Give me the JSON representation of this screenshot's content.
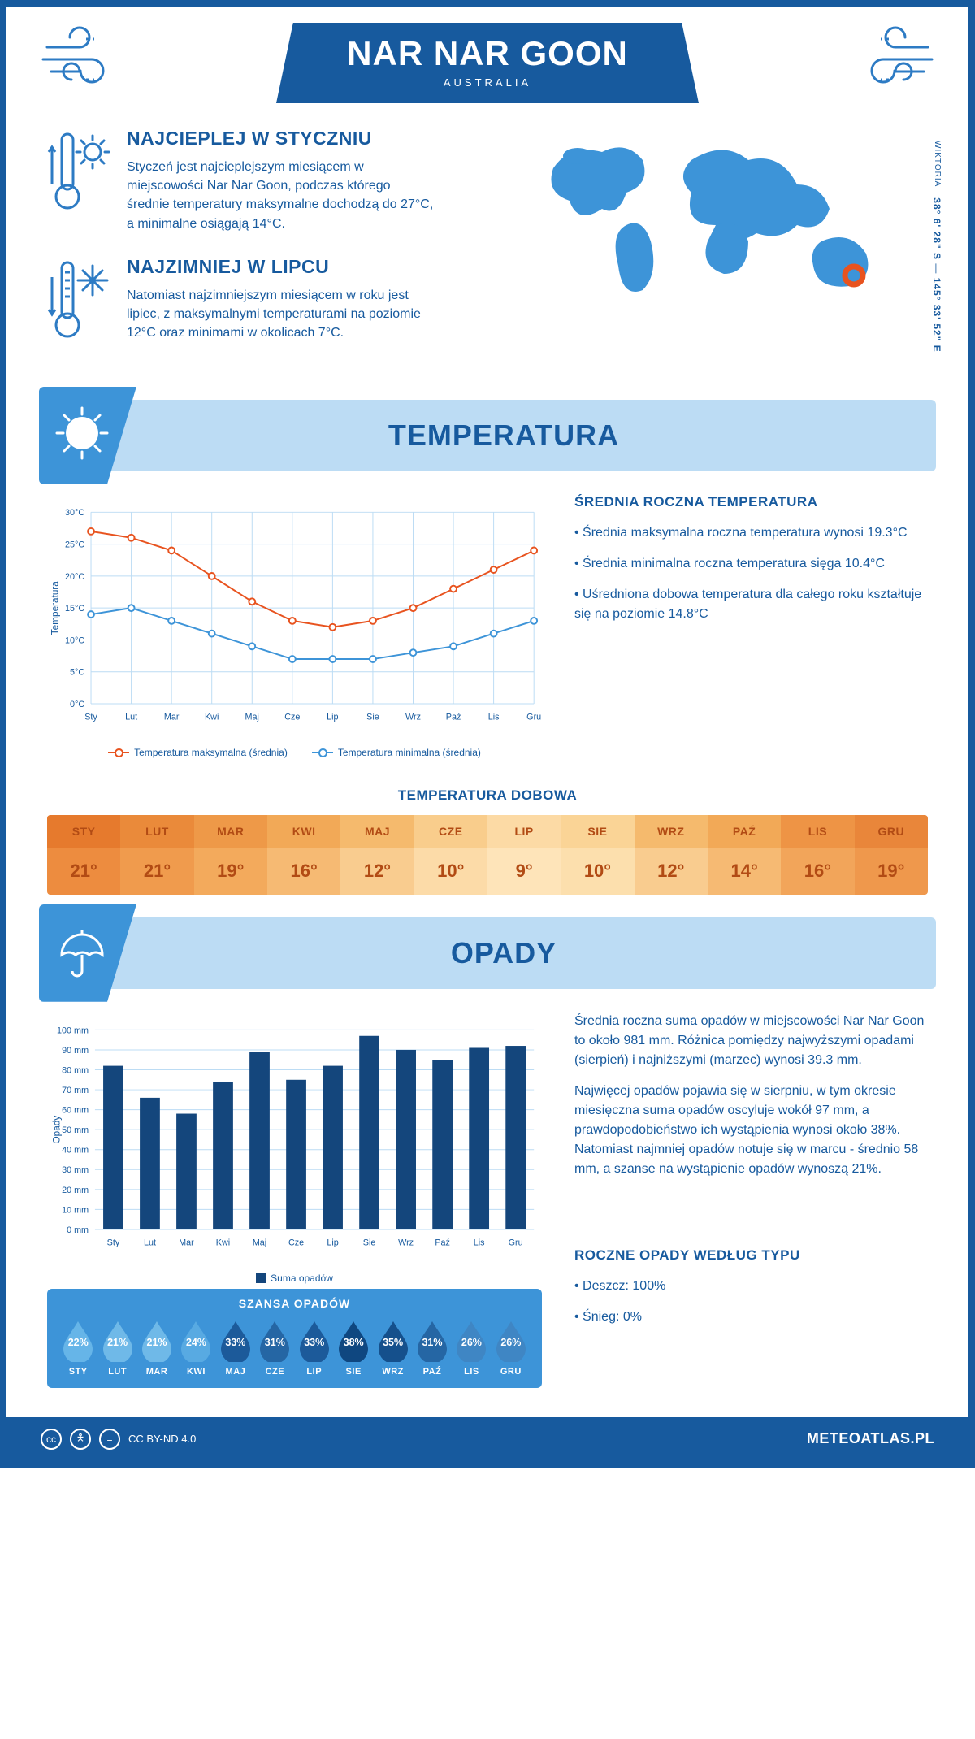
{
  "header": {
    "title": "NAR NAR GOON",
    "subtitle": "AUSTRALIA"
  },
  "intro": {
    "hot": {
      "heading": "NAJCIEPLEJ W STYCZNIU",
      "text": "Styczeń jest najcieplejszym miesiącem w miejscowości Nar Nar Goon, podczas którego średnie temperatury maksymalne dochodzą do 27°C, a minimalne osiągają 14°C."
    },
    "cold": {
      "heading": "NAJZIMNIEJ W LIPCU",
      "text": "Natomiast najzimniejszym miesiącem w roku jest lipiec, z maksymalnymi temperaturami na poziomie 12°C oraz minimami w okolicach 7°C."
    },
    "coords_lat": "38° 6' 28\" S",
    "coords_div": " — ",
    "coords_lon": "145° 33' 52\" E",
    "region": "WIKTORIA"
  },
  "temperature": {
    "section_title": "TEMPERATURA",
    "chart": {
      "type": "line",
      "months": [
        "Sty",
        "Lut",
        "Mar",
        "Kwi",
        "Maj",
        "Cze",
        "Lip",
        "Sie",
        "Wrz",
        "Paź",
        "Lis",
        "Gru"
      ],
      "max_series": [
        27,
        26,
        24,
        20,
        16,
        13,
        12,
        13,
        15,
        18,
        21,
        24
      ],
      "min_series": [
        14,
        15,
        13,
        11,
        9,
        7,
        7,
        7,
        8,
        9,
        11,
        13
      ],
      "max_color": "#e8531f",
      "min_color": "#3d94d8",
      "y_min": 0,
      "y_max": 30,
      "y_step": 5,
      "grid_color": "#bcdcf4",
      "marker_radius": 4,
      "line_width": 2,
      "y_label": "Temperatura",
      "legend_max": "Temperatura maksymalna (średnia)",
      "legend_min": "Temperatura minimalna (średnia)"
    },
    "side": {
      "heading": "ŚREDNIA ROCZNA TEMPERATURA",
      "b1": "• Średnia maksymalna roczna temperatura wynosi 19.3°C",
      "b2": "• Średnia minimalna roczna temperatura sięga 10.4°C",
      "b3": "• Uśredniona dobowa temperatura dla całego roku kształtuje się na poziomie 14.8°C"
    },
    "daily": {
      "title": "TEMPERATURA DOBOWA",
      "months": [
        "STY",
        "LUT",
        "MAR",
        "KWI",
        "MAJ",
        "CZE",
        "LIP",
        "SIE",
        "WRZ",
        "PAŹ",
        "LIS",
        "GRU"
      ],
      "values": [
        "21°",
        "21°",
        "19°",
        "16°",
        "12°",
        "10°",
        "9°",
        "10°",
        "12°",
        "14°",
        "16°",
        "19°"
      ],
      "hd_colors": [
        "#e67a2d",
        "#ea8a3a",
        "#ee9948",
        "#f2a957",
        "#f5ba6d",
        "#f9cd8c",
        "#fcdaa5",
        "#fad496",
        "#f5ba6d",
        "#f2a957",
        "#ee9445",
        "#e9863a"
      ],
      "val_colors": [
        "#ed8c3f",
        "#f09b4d",
        "#f3aa5c",
        "#f6ba73",
        "#f9cc8f",
        "#fcdba8",
        "#fee4b9",
        "#fcdfad",
        "#f9cc8f",
        "#f6ba73",
        "#f2a55a",
        "#ef984c"
      ],
      "text_color": "#b24b14"
    }
  },
  "rain": {
    "section_title": "OPADY",
    "chart": {
      "type": "bar",
      "months": [
        "Sty",
        "Lut",
        "Mar",
        "Kwi",
        "Maj",
        "Cze",
        "Lip",
        "Sie",
        "Wrz",
        "Paź",
        "Lis",
        "Gru"
      ],
      "values": [
        82,
        66,
        58,
        74,
        89,
        75,
        82,
        97,
        90,
        85,
        91,
        92
      ],
      "y_min": 0,
      "y_max": 100,
      "y_step": 10,
      "bar_color": "#14467c",
      "grid_color": "#bcdcf4",
      "y_label": "Opady",
      "legend": "Suma opadów",
      "bar_width": 0.55
    },
    "side": {
      "p1": "Średnia roczna suma opadów w miejscowości Nar Nar Goon to około 981 mm. Różnica pomiędzy najwyższymi opadami (sierpień) i najniższymi (marzec) wynosi 39.3 mm.",
      "p2": "Najwięcej opadów pojawia się w sierpniu, w tym okresie miesięczna suma opadów oscyluje wokół 97 mm, a prawdopodobieństwo ich wystąpienia wynosi około 38%. Natomiast najmniej opadów notuje się w marcu - średnio 58 mm, a szanse na wystąpienie opadów wynoszą 21%."
    },
    "chance": {
      "title": "SZANSA OPADÓW",
      "months": [
        "STY",
        "LUT",
        "MAR",
        "KWI",
        "MAJ",
        "CZE",
        "LIP",
        "SIE",
        "WRZ",
        "PAŹ",
        "LIS",
        "GRU"
      ],
      "values": [
        "22%",
        "21%",
        "21%",
        "24%",
        "33%",
        "31%",
        "33%",
        "38%",
        "35%",
        "31%",
        "26%",
        "26%"
      ],
      "colors": [
        "#66b5e8",
        "#6fb9e8",
        "#6fb9e8",
        "#58aae2",
        "#1c5a9a",
        "#2566a4",
        "#1c5a9a",
        "#0f4780",
        "#15508c",
        "#2566a4",
        "#3f86c4",
        "#3f86c4"
      ]
    },
    "type": {
      "heading": "ROCZNE OPADY WEDŁUG TYPU",
      "l1": "• Deszcz: 100%",
      "l2": "• Śnieg: 0%"
    }
  },
  "footer": {
    "license": "CC BY-ND 4.0",
    "site": "METEOATLAS.PL"
  }
}
